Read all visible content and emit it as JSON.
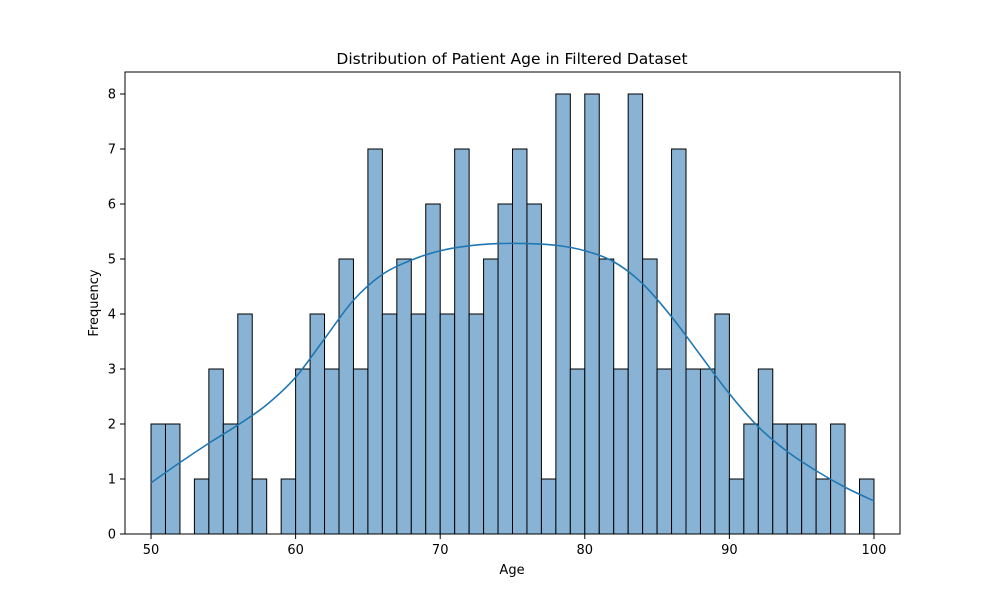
{
  "chart_data": {
    "type": "bar",
    "subtype": "histogram",
    "title": "Distribution of Patient Age in Filtered Dataset",
    "xlabel": "Age",
    "ylabel": "Frequency",
    "xlim": [
      48.2,
      101.8
    ],
    "ylim": [
      0,
      8.4
    ],
    "xticks": [
      50,
      60,
      70,
      80,
      90,
      100
    ],
    "yticks": [
      0,
      1,
      2,
      3,
      4,
      5,
      6,
      7,
      8
    ],
    "bin_start": 50,
    "bin_width": 1,
    "values": [
      2,
      2,
      0,
      1,
      3,
      2,
      4,
      1,
      0,
      1,
      3,
      4,
      3,
      5,
      3,
      7,
      4,
      5,
      4,
      6,
      4,
      7,
      4,
      5,
      6,
      7,
      6,
      1,
      8,
      3,
      8,
      5,
      3,
      8,
      5,
      3,
      7,
      3,
      3,
      4,
      1,
      2,
      3,
      2,
      2,
      2,
      1,
      2,
      0,
      1
    ],
    "kde": {
      "x": [
        50,
        52,
        54,
        56,
        58,
        60,
        62,
        64,
        66,
        68,
        70,
        72,
        74,
        76,
        78,
        80,
        82,
        84,
        86,
        88,
        90,
        92,
        94,
        96,
        98,
        100
      ],
      "y": [
        0.93,
        1.3,
        1.65,
        1.98,
        2.35,
        2.85,
        3.55,
        4.25,
        4.72,
        4.98,
        5.15,
        5.24,
        5.28,
        5.28,
        5.25,
        5.15,
        4.95,
        4.55,
        3.95,
        3.25,
        2.55,
        1.95,
        1.5,
        1.15,
        0.85,
        0.6
      ]
    },
    "grid": false,
    "colors": {
      "bar_fill": "#89b3d4",
      "bar_edge": "#000000",
      "kde_line": "#1f77b4"
    }
  }
}
